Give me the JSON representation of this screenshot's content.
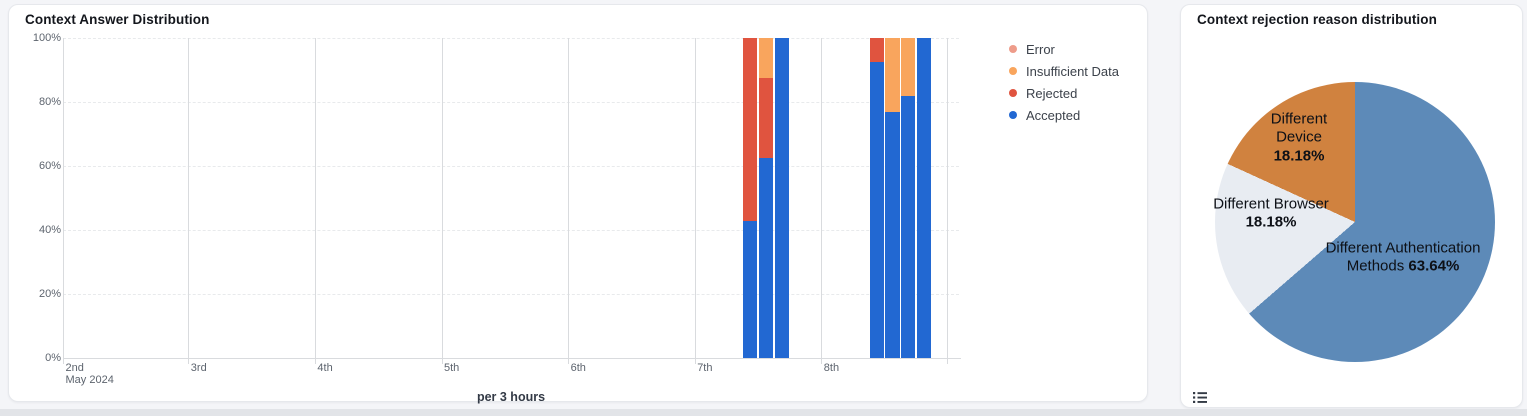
{
  "panels": {
    "answer": {
      "title": "Context Answer Distribution",
      "x_axis_caption": "per 3 hours",
      "x_axis_sublabel": "May 2024"
    },
    "rejection": {
      "title": "Context rejection reason distribution",
      "legend_icon": "list-legend-toggle"
    }
  },
  "colors": {
    "accepted": "#2268d2",
    "rejected": "#e0543f",
    "insufficient": "#f9a55d",
    "error": "#ee9c8a",
    "pie_blue": "#5d8ab8",
    "pie_light": "#e8ecf2",
    "pie_orange": "#d0823f"
  },
  "chart_data": [
    {
      "type": "bar",
      "stacked": true,
      "title": "Context Answer Distribution",
      "xlabel": "per 3 hours",
      "ylabel": "",
      "ylim": [
        0,
        100
      ],
      "grid": true,
      "legend_position": "right",
      "y_tick_labels": [
        "0%",
        "20%",
        "40%",
        "60%",
        "80%",
        "100%"
      ],
      "x_tick_labels": [
        "2nd",
        "3rd",
        "4th",
        "5th",
        "6th",
        "7th",
        "8th"
      ],
      "x_tick_sublabel": "May 2024",
      "legend": [
        {
          "name": "Error",
          "color": "#ee9c8a"
        },
        {
          "name": "Insufficient Data",
          "color": "#f9a55d"
        },
        {
          "name": "Rejected",
          "color": "#e0543f"
        },
        {
          "name": "Accepted",
          "color": "#2268d2"
        }
      ],
      "stack_order_bottom_to_top": [
        "Accepted",
        "Rejected",
        "Insufficient Data",
        "Error"
      ],
      "bars": [
        {
          "time": "May 7 09:00",
          "day_offset": 5,
          "hour": 9,
          "Accepted": 42.9,
          "Rejected": 57.1,
          "Insufficient Data": 0,
          "Error": 0
        },
        {
          "time": "May 7 12:00",
          "day_offset": 5,
          "hour": 12,
          "Accepted": 62.5,
          "Rejected": 25,
          "Insufficient Data": 12.5,
          "Error": 0
        },
        {
          "time": "May 7 15:00",
          "day_offset": 5,
          "hour": 15,
          "Accepted": 100,
          "Rejected": 0,
          "Insufficient Data": 0,
          "Error": 0
        },
        {
          "time": "May 8 09:00",
          "day_offset": 6,
          "hour": 9,
          "Accepted": 92.5,
          "Rejected": 7.5,
          "Insufficient Data": 0,
          "Error": 0
        },
        {
          "time": "May 8 12:00",
          "day_offset": 6,
          "hour": 12,
          "Accepted": 77,
          "Rejected": 0,
          "Insufficient Data": 23,
          "Error": 0
        },
        {
          "time": "May 8 15:00",
          "day_offset": 6,
          "hour": 15,
          "Accepted": 82,
          "Rejected": 0,
          "Insufficient Data": 18,
          "Error": 0
        },
        {
          "time": "May 8 18:00",
          "day_offset": 6,
          "hour": 18,
          "Accepted": 100,
          "Rejected": 0,
          "Insufficient Data": 0,
          "Error": 0
        }
      ]
    },
    {
      "type": "pie",
      "title": "Context rejection reason distribution",
      "start_angle_deg": 0,
      "direction": "clockwise",
      "slices": [
        {
          "label": "Different Authentication Methods",
          "pct_label": "63.64%",
          "value": 63.64,
          "color": "#5d8ab8"
        },
        {
          "label": "Different Browser",
          "pct_label": "18.18%",
          "value": 18.18,
          "color": "#e8ecf2"
        },
        {
          "label": "Different Device",
          "pct_label": "18.18%",
          "value": 18.18,
          "color": "#d0823f"
        }
      ]
    }
  ]
}
